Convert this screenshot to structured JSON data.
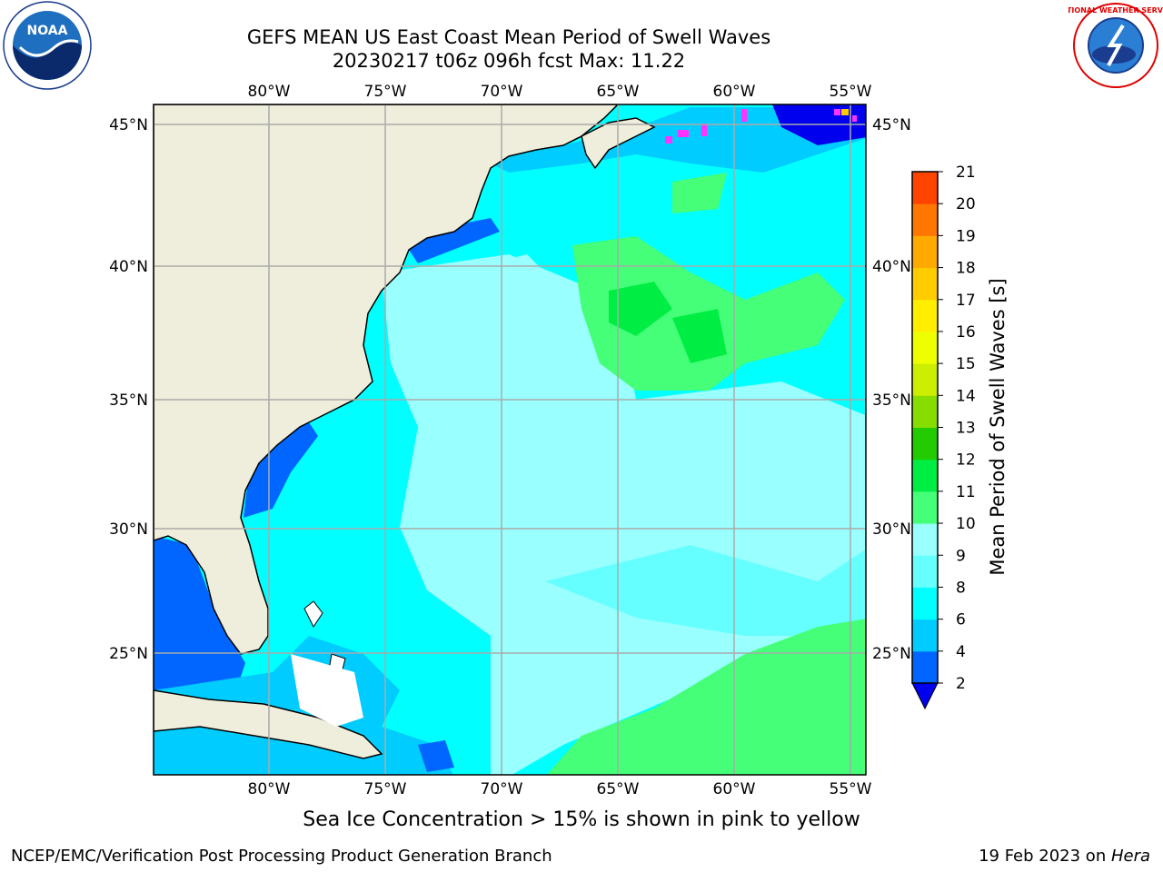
{
  "title": {
    "line1": "GEFS MEAN US East Coast Mean Period of Swell Waves",
    "line2": "20230217 t06z 096h fcst   Max: 11.22"
  },
  "logos": {
    "left": {
      "icon": "noaa-logo",
      "text": "NOAA"
    },
    "right": {
      "icon": "nws-logo",
      "text": "NATIONAL WEATHER SERVICE"
    }
  },
  "map": {
    "lon_labels": [
      "80°W",
      "75°W",
      "70°W",
      "65°W",
      "60°W",
      "55°W"
    ],
    "lat_labels": [
      "45°N",
      "40°N",
      "35°N",
      "30°N",
      "25°N"
    ],
    "ocean_color": "#00ffff",
    "land_color": "#efeedc"
  },
  "colorbar": {
    "title": "Mean Period of Swell Waves [s]",
    "ticks": [
      "2",
      "4",
      "6",
      "8",
      "9",
      "10",
      "11",
      "12",
      "13",
      "14",
      "15",
      "16",
      "17",
      "18",
      "19",
      "20",
      "21"
    ],
    "colors": [
      "#0066ff",
      "#00ccff",
      "#00ffff",
      "#66ffff",
      "#99ffff",
      "#44ff77",
      "#00ee44",
      "#22cc00",
      "#88dd00",
      "#ccee00",
      "#eeff00",
      "#ffee00",
      "#ffcc00",
      "#ffaa00",
      "#ff7700",
      "#ff4400",
      "#ff0000"
    ],
    "extend_color": "#0000ee"
  },
  "caption": "Sea Ice Concentration > 15% is shown in pink to yellow",
  "footer": {
    "credit": "NCEP/EMC/Verification Post Processing Product Generation Branch",
    "date": "19 Feb 2023 on ",
    "machine": "Hera"
  }
}
